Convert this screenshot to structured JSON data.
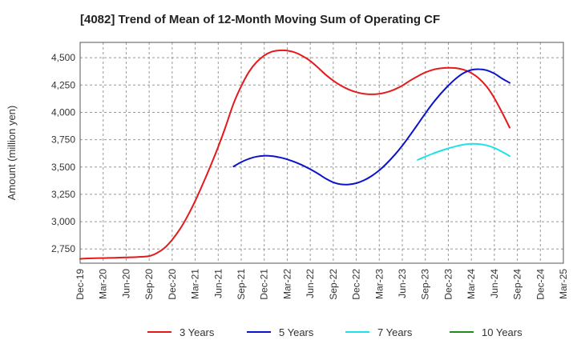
{
  "chart_data": {
    "type": "line",
    "title": "[4082]  Trend of Mean of 12-Month Moving Sum of Operating CF",
    "xlabel": "",
    "ylabel": "Amount (million yen)",
    "ylim": [
      2620,
      4640
    ],
    "yticks": [
      2750,
      3000,
      3250,
      3500,
      3750,
      4000,
      4250,
      4500
    ],
    "ytick_labels": [
      "2,750",
      "3,000",
      "3,250",
      "3,500",
      "3,750",
      "4,000",
      "4,250",
      "4,500"
    ],
    "x_tick_labels": [
      "Dec-19",
      "Mar-20",
      "Jun-20",
      "Sep-20",
      "Dec-20",
      "Mar-21",
      "Jun-21",
      "Sep-21",
      "Dec-21",
      "Mar-22",
      "Jun-22",
      "Sep-22",
      "Dec-22",
      "Mar-23",
      "Jun-23",
      "Sep-23",
      "Dec-23",
      "Mar-24",
      "Jun-24",
      "Sep-24",
      "Dec-24",
      "Mar-25"
    ],
    "grid": true,
    "legend_position": "bottom",
    "series": [
      {
        "name": "3 Years",
        "color": "#e41a1c",
        "points": [
          [
            0,
            2660
          ],
          [
            0.5,
            2665
          ],
          [
            1,
            2667
          ],
          [
            1.5,
            2670
          ],
          [
            2,
            2673
          ],
          [
            2.5,
            2677
          ],
          [
            3,
            2685
          ],
          [
            3.333,
            2712
          ],
          [
            3.667,
            2760
          ],
          [
            4,
            2835
          ],
          [
            4.333,
            2930
          ],
          [
            4.667,
            3050
          ],
          [
            5,
            3190
          ],
          [
            5.333,
            3345
          ],
          [
            5.667,
            3510
          ],
          [
            6,
            3685
          ],
          [
            6.333,
            3875
          ],
          [
            6.667,
            4080
          ],
          [
            7,
            4240
          ],
          [
            7.333,
            4370
          ],
          [
            7.667,
            4460
          ],
          [
            8,
            4520
          ],
          [
            8.333,
            4555
          ],
          [
            8.667,
            4567
          ],
          [
            9,
            4565
          ],
          [
            9.333,
            4548
          ],
          [
            9.667,
            4515
          ],
          [
            10,
            4470
          ],
          [
            10.333,
            4410
          ],
          [
            10.667,
            4345
          ],
          [
            11,
            4290
          ],
          [
            11.333,
            4245
          ],
          [
            11.667,
            4210
          ],
          [
            12,
            4185
          ],
          [
            12.333,
            4170
          ],
          [
            12.667,
            4165
          ],
          [
            13,
            4170
          ],
          [
            13.333,
            4185
          ],
          [
            13.667,
            4210
          ],
          [
            14,
            4245
          ],
          [
            14.333,
            4290
          ],
          [
            14.667,
            4330
          ],
          [
            15,
            4365
          ],
          [
            15.333,
            4390
          ],
          [
            15.667,
            4403
          ],
          [
            16,
            4408
          ],
          [
            16.333,
            4405
          ],
          [
            16.667,
            4390
          ],
          [
            17,
            4360
          ],
          [
            17.333,
            4310
          ],
          [
            17.667,
            4235
          ],
          [
            18,
            4130
          ],
          [
            18.333,
            4000
          ],
          [
            18.667,
            3860
          ]
        ]
      },
      {
        "name": "5 Years",
        "color": "#0a14c8",
        "points": [
          [
            6.667,
            3505
          ],
          [
            7,
            3545
          ],
          [
            7.333,
            3575
          ],
          [
            7.667,
            3595
          ],
          [
            8,
            3603
          ],
          [
            8.333,
            3600
          ],
          [
            8.667,
            3588
          ],
          [
            9,
            3570
          ],
          [
            9.333,
            3545
          ],
          [
            9.667,
            3515
          ],
          [
            10,
            3480
          ],
          [
            10.333,
            3440
          ],
          [
            10.667,
            3395
          ],
          [
            11,
            3360
          ],
          [
            11.333,
            3342
          ],
          [
            11.667,
            3340
          ],
          [
            12,
            3352
          ],
          [
            12.333,
            3378
          ],
          [
            12.667,
            3418
          ],
          [
            13,
            3470
          ],
          [
            13.333,
            3535
          ],
          [
            13.667,
            3610
          ],
          [
            14,
            3695
          ],
          [
            14.333,
            3790
          ],
          [
            14.667,
            3890
          ],
          [
            15,
            3990
          ],
          [
            15.333,
            4085
          ],
          [
            15.667,
            4170
          ],
          [
            16,
            4245
          ],
          [
            16.333,
            4310
          ],
          [
            16.667,
            4360
          ],
          [
            17,
            4388
          ],
          [
            17.333,
            4395
          ],
          [
            17.667,
            4385
          ],
          [
            18,
            4355
          ],
          [
            18.333,
            4310
          ],
          [
            18.667,
            4270
          ]
        ]
      },
      {
        "name": "7 Years",
        "color": "#20e0e8",
        "points": [
          [
            14.667,
            3565
          ],
          [
            15,
            3595
          ],
          [
            15.333,
            3623
          ],
          [
            15.667,
            3648
          ],
          [
            16,
            3670
          ],
          [
            16.333,
            3690
          ],
          [
            16.667,
            3705
          ],
          [
            17,
            3712
          ],
          [
            17.333,
            3710
          ],
          [
            17.667,
            3698
          ],
          [
            18,
            3675
          ],
          [
            18.333,
            3640
          ],
          [
            18.667,
            3600
          ]
        ]
      },
      {
        "name": "10 Years",
        "color": "#1e8c1e",
        "points": []
      }
    ]
  }
}
